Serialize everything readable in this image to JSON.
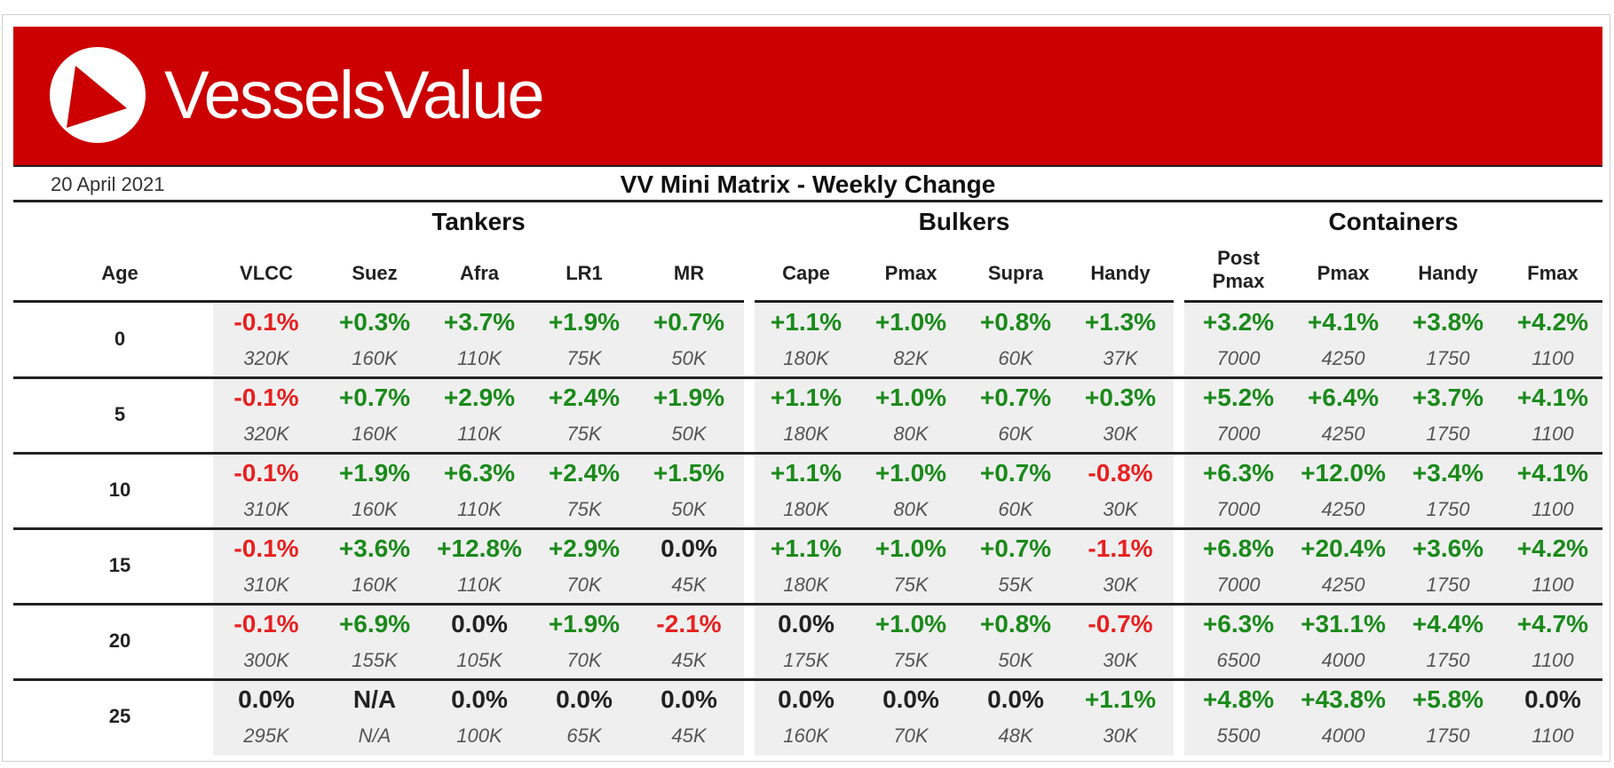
{
  "brand": {
    "name": "VesselsValue",
    "color": "#cc0000"
  },
  "header": {
    "date": "20 April 2021",
    "title": "VV Mini Matrix - Weekly Change"
  },
  "groups": [
    "Tankers",
    "Bulkers",
    "Containers"
  ],
  "age_label": "Age",
  "columns": [
    "VLCC",
    "Suez",
    "Afra",
    "LR1",
    "MR",
    "Cape",
    "Pmax",
    "Supra",
    "Handy",
    "Post Pmax",
    "Pmax",
    "Handy",
    "Fmax"
  ],
  "colors": {
    "up": "#1a8a1a",
    "down": "#e82020",
    "flat": "#222222"
  },
  "rows": [
    {
      "age": "0",
      "pct": [
        "-0.1%",
        "+0.3%",
        "+3.7%",
        "+1.9%",
        "+0.7%",
        "+1.1%",
        "+1.0%",
        "+0.8%",
        "+1.3%",
        "+3.2%",
        "+4.1%",
        "+3.8%",
        "+4.2%"
      ],
      "size": [
        "320K",
        "160K",
        "110K",
        "75K",
        "50K",
        "180K",
        "82K",
        "60K",
        "37K",
        "7000",
        "4250",
        "1750",
        "1100"
      ]
    },
    {
      "age": "5",
      "pct": [
        "-0.1%",
        "+0.7%",
        "+2.9%",
        "+2.4%",
        "+1.9%",
        "+1.1%",
        "+1.0%",
        "+0.7%",
        "+0.3%",
        "+5.2%",
        "+6.4%",
        "+3.7%",
        "+4.1%"
      ],
      "size": [
        "320K",
        "160K",
        "110K",
        "75K",
        "50K",
        "180K",
        "80K",
        "60K",
        "30K",
        "7000",
        "4250",
        "1750",
        "1100"
      ]
    },
    {
      "age": "10",
      "pct": [
        "-0.1%",
        "+1.9%",
        "+6.3%",
        "+2.4%",
        "+1.5%",
        "+1.1%",
        "+1.0%",
        "+0.7%",
        "-0.8%",
        "+6.3%",
        "+12.0%",
        "+3.4%",
        "+4.1%"
      ],
      "size": [
        "310K",
        "160K",
        "110K",
        "75K",
        "50K",
        "180K",
        "80K",
        "60K",
        "30K",
        "7000",
        "4250",
        "1750",
        "1100"
      ]
    },
    {
      "age": "15",
      "pct": [
        "-0.1%",
        "+3.6%",
        "+12.8%",
        "+2.9%",
        "0.0%",
        "+1.1%",
        "+1.0%",
        "+0.7%",
        "-1.1%",
        "+6.8%",
        "+20.4%",
        "+3.6%",
        "+4.2%"
      ],
      "size": [
        "310K",
        "160K",
        "110K",
        "70K",
        "45K",
        "180K",
        "75K",
        "55K",
        "30K",
        "7000",
        "4250",
        "1750",
        "1100"
      ]
    },
    {
      "age": "20",
      "pct": [
        "-0.1%",
        "+6.9%",
        "0.0%",
        "+1.9%",
        "-2.1%",
        "0.0%",
        "+1.0%",
        "+0.8%",
        "-0.7%",
        "+6.3%",
        "+31.1%",
        "+4.4%",
        "+4.7%"
      ],
      "size": [
        "300K",
        "155K",
        "105K",
        "70K",
        "45K",
        "175K",
        "75K",
        "50K",
        "30K",
        "6500",
        "4000",
        "1750",
        "1100"
      ]
    },
    {
      "age": "25",
      "pct": [
        "0.0%",
        "N/A",
        "0.0%",
        "0.0%",
        "0.0%",
        "0.0%",
        "0.0%",
        "0.0%",
        "+1.1%",
        "+4.8%",
        "+43.8%",
        "+5.8%",
        "0.0%"
      ],
      "size": [
        "295K",
        "N/A",
        "100K",
        "65K",
        "45K",
        "160K",
        "70K",
        "48K",
        "30K",
        "5500",
        "4000",
        "1750",
        "1100"
      ]
    }
  ]
}
